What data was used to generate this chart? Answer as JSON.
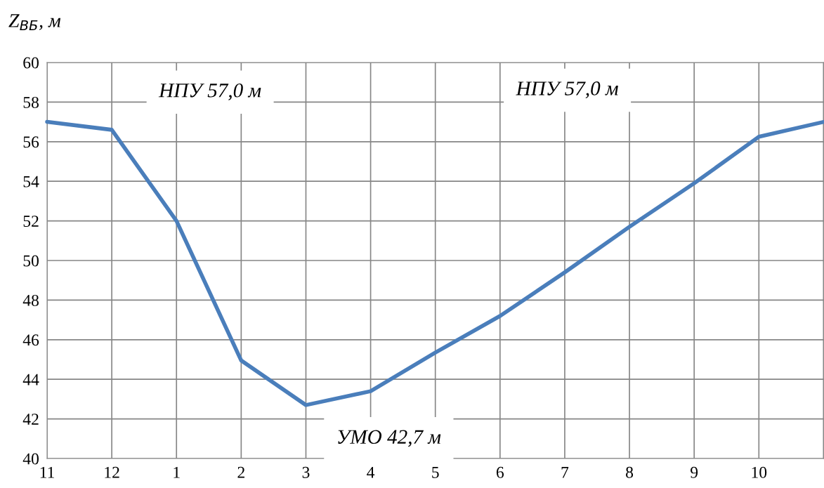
{
  "chart_data": {
    "type": "line",
    "ylabel": "Z$_{ВБ}$, м",
    "categories": [
      "11",
      "12",
      "1",
      "2",
      "3",
      "4",
      "5",
      "6",
      "7",
      "8",
      "9",
      "10",
      null
    ],
    "series": [
      {
        "color": "#4a7ebb",
        "values": [
          57.0,
          56.6,
          52.0,
          44.95,
          42.7,
          43.4,
          45.35,
          47.2,
          49.4,
          51.7,
          53.9,
          56.25,
          57.0
        ]
      }
    ],
    "ylim": [
      40,
      60
    ],
    "yticks": [
      40,
      42,
      44,
      46,
      48,
      50,
      52,
      54,
      56,
      58,
      60
    ],
    "grid": true,
    "legend": false,
    "marker": "none",
    "line_style": "solid",
    "annotations": [
      "НПУ 57,0 м",
      "НПУ 57,0 м",
      "УМО 42,7 м"
    ]
  }
}
